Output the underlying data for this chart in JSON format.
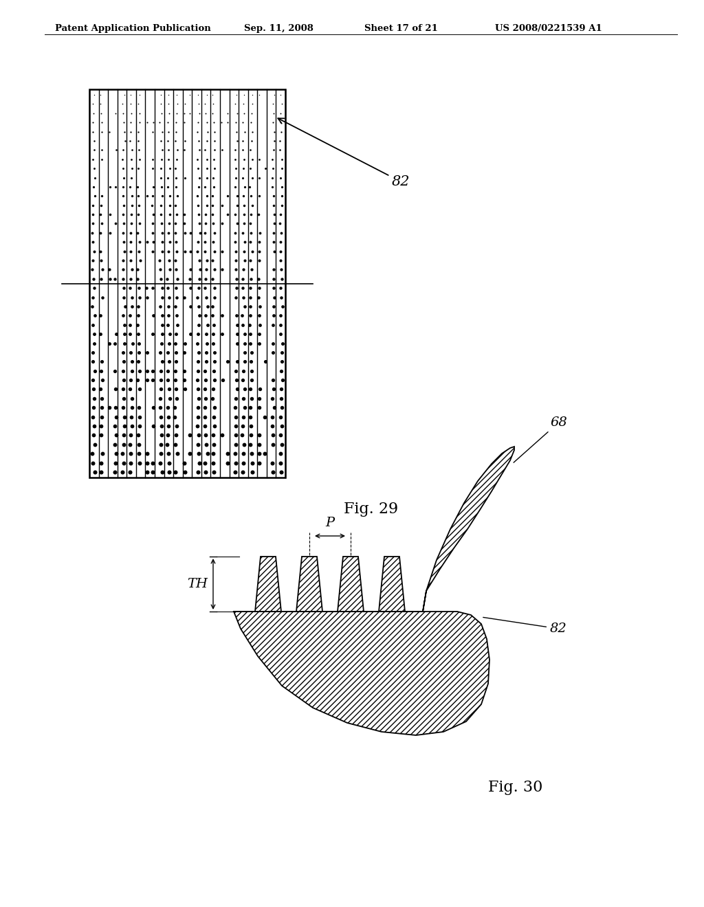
{
  "bg_color": "#ffffff",
  "header_text": "Patent Application Publication",
  "header_date": "Sep. 11, 2008",
  "header_sheet": "Sheet 17 of 21",
  "header_patent": "US 2008/0221539 A1",
  "fig29_label": "Fig. 29",
  "fig30_label": "Fig. 30",
  "label_82_fig29": "82",
  "label_82_fig30": "82",
  "label_68": "68",
  "label_P": "P",
  "label_TH": "TH"
}
